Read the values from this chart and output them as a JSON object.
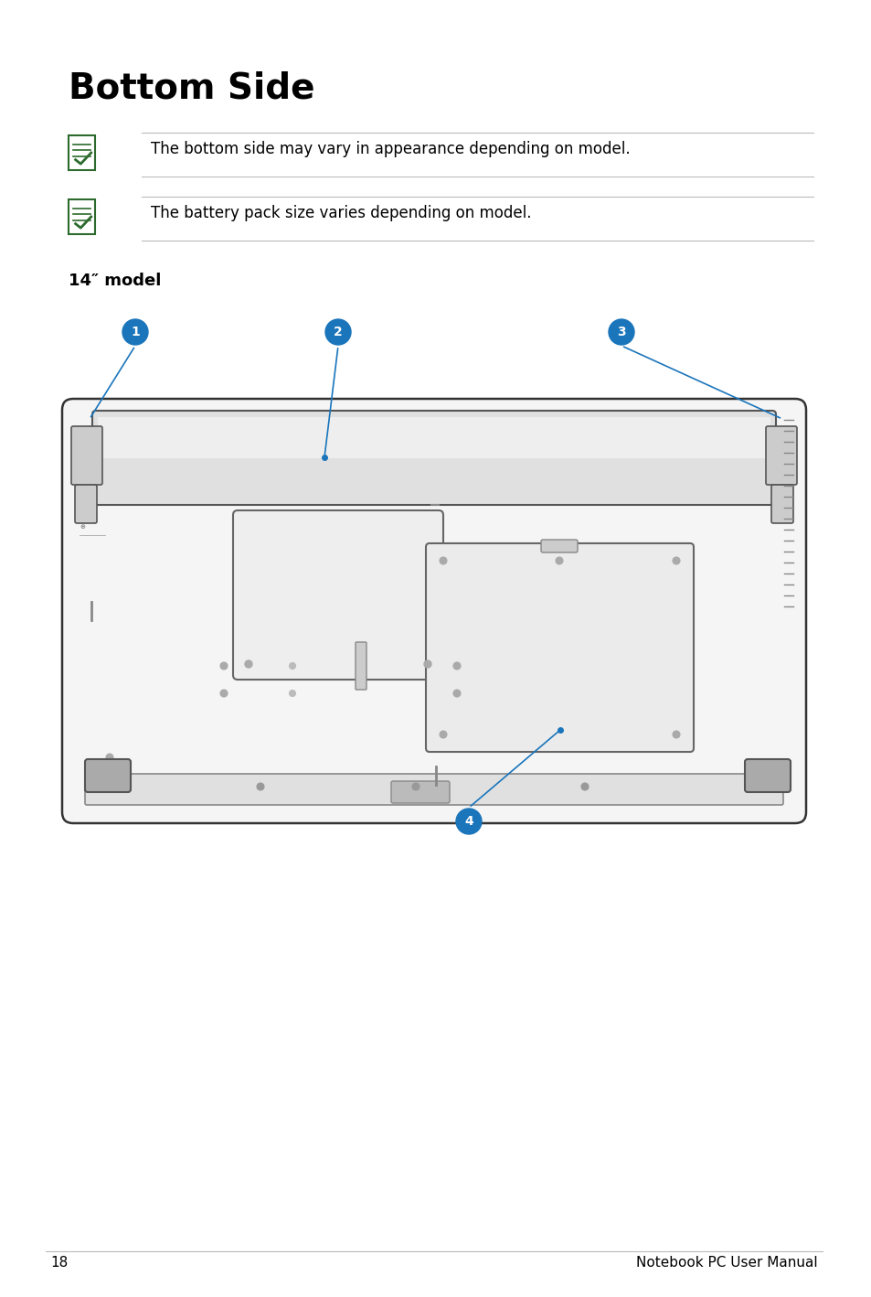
{
  "title": "Bottom Side",
  "note1": "The bottom side may vary in appearance depending on model.",
  "note2": "The battery pack size varies depending on model.",
  "model_label": "14″ model",
  "page_number": "18",
  "footer_text": "Notebook PC User Manual",
  "bg_color": "#ffffff",
  "text_color": "#000000",
  "blue_color": "#1a75bb",
  "green_color": "#2d6a2d",
  "gray_color": "#888888",
  "light_gray": "#e8e8e8",
  "mid_gray": "#cccccc",
  "line_color": "#bbbbbb"
}
